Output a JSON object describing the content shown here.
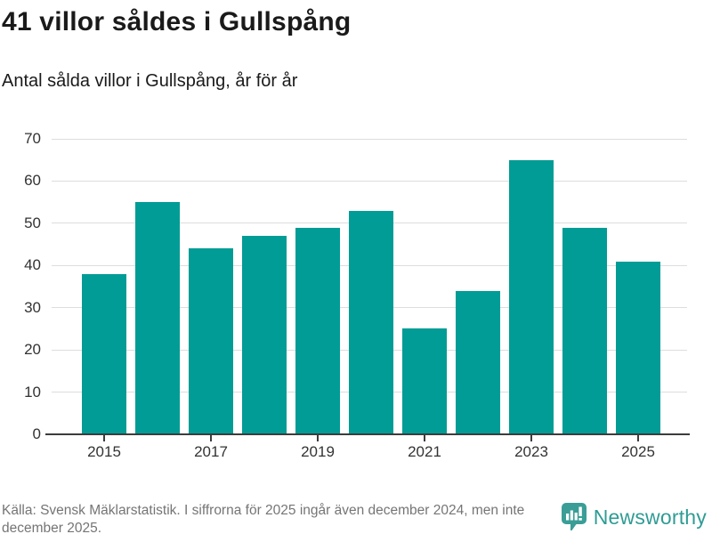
{
  "header": {
    "title": "41 villor såldes i Gullspång",
    "subtitle": "Antal sålda villor i Gullspång, år för år"
  },
  "chart_data": {
    "type": "bar",
    "title": "41 villor såldes i Gullspång",
    "subtitle": "Antal sålda villor i Gullspång, år för år",
    "categories": [
      "2015",
      "2016",
      "2017",
      "2018",
      "2019",
      "2020",
      "2021",
      "2022",
      "2023",
      "2024",
      "2025"
    ],
    "values": [
      38,
      55,
      44,
      47,
      49,
      53,
      25,
      34,
      65,
      49,
      41
    ],
    "xlabel": "",
    "ylabel": "",
    "ylim": [
      0,
      70
    ],
    "yticks": [
      0,
      10,
      20,
      30,
      40,
      50,
      60,
      70
    ],
    "x_tick_labels": [
      "2015",
      "2017",
      "2019",
      "2021",
      "2023",
      "2025"
    ],
    "grid": true,
    "legend": false,
    "bar_color": "#009c95"
  },
  "colors": {
    "bar": "#009c95",
    "brand_teal": "#2f9c94",
    "logo_teal": "#3a9e97",
    "grid": "#dddddd",
    "axis": "#3c3c3c",
    "axis_text": "#333333",
    "title_text": "#1a1a1a",
    "footer_text": "#757575"
  },
  "footer": {
    "source": "Källa: Svensk Mäklarstatistik. I siffrorna för 2025 ingår även december 2024, men inte december 2025.",
    "brand": "Newsworthy"
  }
}
